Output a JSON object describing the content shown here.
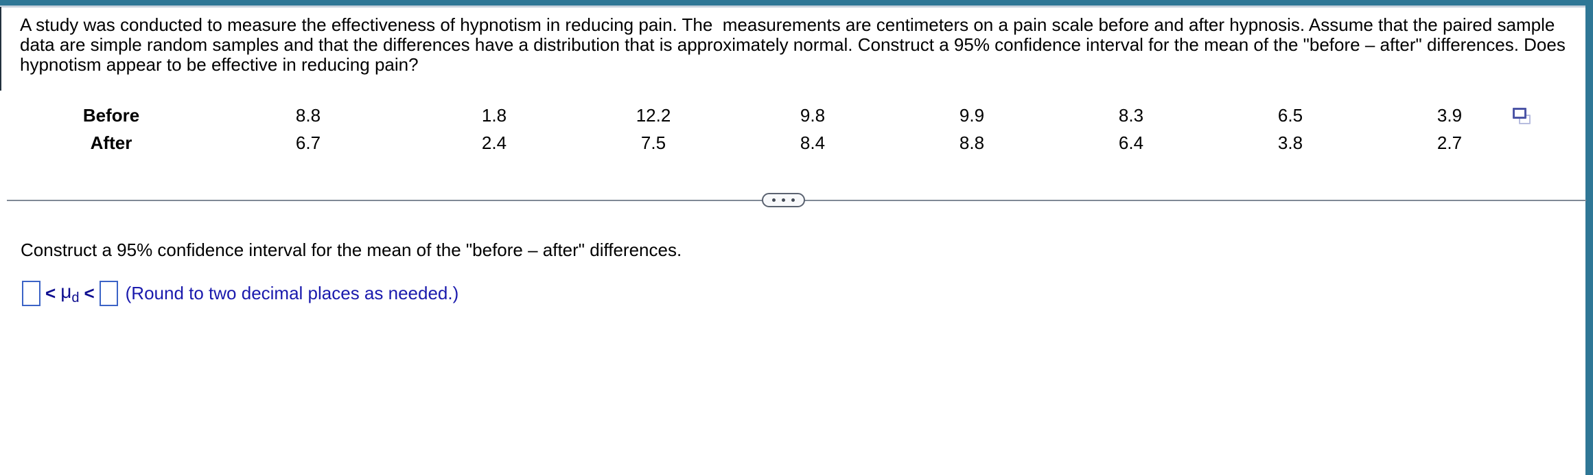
{
  "chrome": {
    "top_accent_color": "#2F7796",
    "top_underline_color": "#C9D2DC",
    "right_accent_color": "#2F7796"
  },
  "problem": {
    "statement_lines": [
      "A study was conducted to measure the effectiveness of hypnotism in reducing pain. The  measurements are centimeters on a pain scale before and after hypnosis. Assume that the paired sample",
      "data are simple random samples and that the differences have a distribution that is approximately normal. Construct a 95% confidence interval for the mean of the \"before – after\" differences. Does",
      "hypnotism appear to be effective in reducing pain?"
    ]
  },
  "table": {
    "rows": [
      {
        "label": "Before",
        "values": [
          "8.8",
          "1.8",
          "12.2",
          "9.8",
          "9.9",
          "8.3",
          "6.5",
          "3.9"
        ]
      },
      {
        "label": "After",
        "values": [
          "6.7",
          "2.4",
          "7.5",
          "8.4",
          "8.8",
          "6.4",
          "3.8",
          "2.7"
        ]
      }
    ],
    "copy_icon": "copy-data-icon"
  },
  "divider": {
    "toggle_icon": "ellipsis-icon"
  },
  "question": {
    "prompt": "Construct a 95% confidence interval for the mean of the \"before – after\" differences.",
    "answer": {
      "lower_value": "",
      "upper_value": "",
      "relation_left": "<",
      "mu_symbol": "μ",
      "mu_subscript": "d",
      "relation_right": "<",
      "instruction": "(Round to two decimal places as needed.)"
    }
  },
  "colors": {
    "input_border": "#3B63C6",
    "math_text": "#0D0D8F",
    "instruction_text": "#1A1AAD",
    "divider": "#808996",
    "copy_icon_front": "#4C55A6",
    "copy_icon_back": "#B7BDDF"
  }
}
